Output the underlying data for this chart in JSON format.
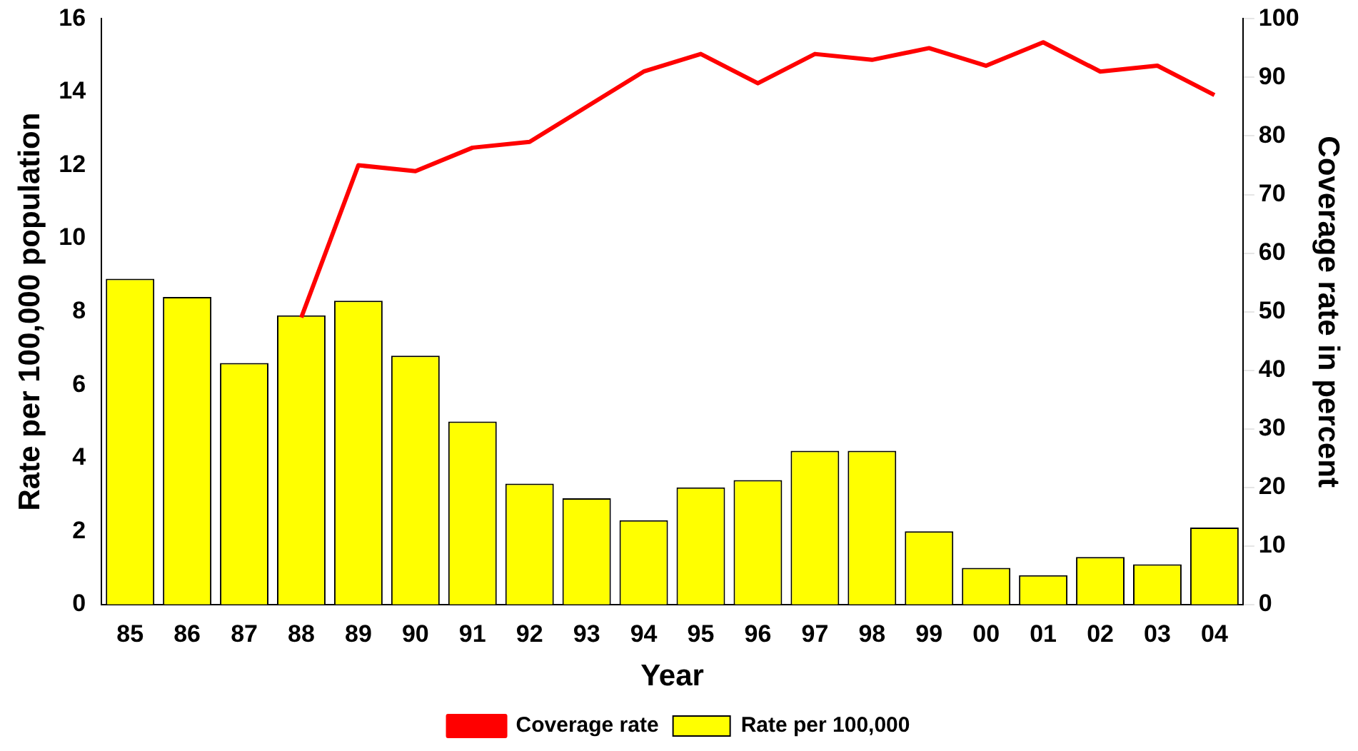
{
  "chart_data": {
    "type": "bar",
    "xlabel": "Year",
    "ylabel": "Rate per 100,000 population",
    "y2label": "Coverage rate in percent",
    "categories": [
      "85",
      "86",
      "87",
      "88",
      "89",
      "90",
      "91",
      "92",
      "93",
      "94",
      "95",
      "96",
      "97",
      "98",
      "99",
      "00",
      "01",
      "02",
      "03",
      "04"
    ],
    "series": [
      {
        "name": "Rate per 100,000",
        "color": "#ffff00",
        "values": [
          8.9,
          8.4,
          6.6,
          7.9,
          8.3,
          6.8,
          5.0,
          3.3,
          2.9,
          2.3,
          3.2,
          3.4,
          4.2,
          4.2,
          2.0,
          1.0,
          0.8,
          1.3,
          1.1,
          2.1
        ]
      },
      {
        "name": "Coverage rate",
        "type": "line",
        "axis": "y2",
        "color": "#ff0000",
        "values": [
          null,
          null,
          null,
          49,
          75,
          74,
          78,
          79,
          85,
          91,
          94,
          89,
          94,
          93,
          95,
          92,
          96,
          91,
          92,
          87
        ]
      }
    ],
    "ylim": [
      0,
      16
    ],
    "yticks": [
      0,
      2,
      4,
      6,
      8,
      10,
      12,
      14,
      16
    ],
    "y2lim": [
      0,
      100
    ],
    "y2ticks": [
      0,
      10,
      20,
      30,
      40,
      50,
      60,
      70,
      80,
      90,
      100
    ],
    "grid": false,
    "legend": "bottom",
    "marker": "none"
  }
}
